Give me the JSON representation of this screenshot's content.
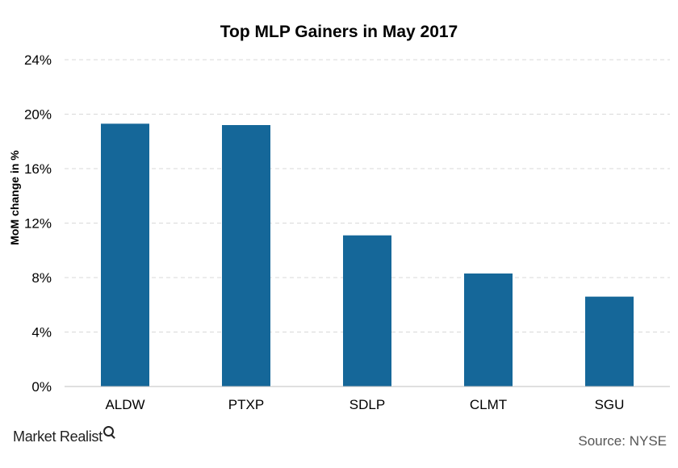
{
  "chart_data": {
    "type": "bar",
    "title": "Top MLP Gainers in May 2017",
    "ylabel": "MoM change in %",
    "xlabel": "",
    "categories": [
      "ALDW",
      "PTXP",
      "SDLP",
      "CLMT",
      "SGU"
    ],
    "values": [
      19.3,
      19.2,
      11.1,
      8.3,
      6.6
    ],
    "ylim": [
      0,
      24
    ],
    "yticks": [
      "0%",
      "4%",
      "8%",
      "12%",
      "16%",
      "20%",
      "24%"
    ],
    "ytick_values": [
      0,
      4,
      8,
      12,
      16,
      20,
      24
    ],
    "grid": true,
    "bar_color": "#156799",
    "grid_color": "#d9d9d9"
  },
  "footer": {
    "brand": "Market Realist",
    "source": "Source: NYSE"
  }
}
